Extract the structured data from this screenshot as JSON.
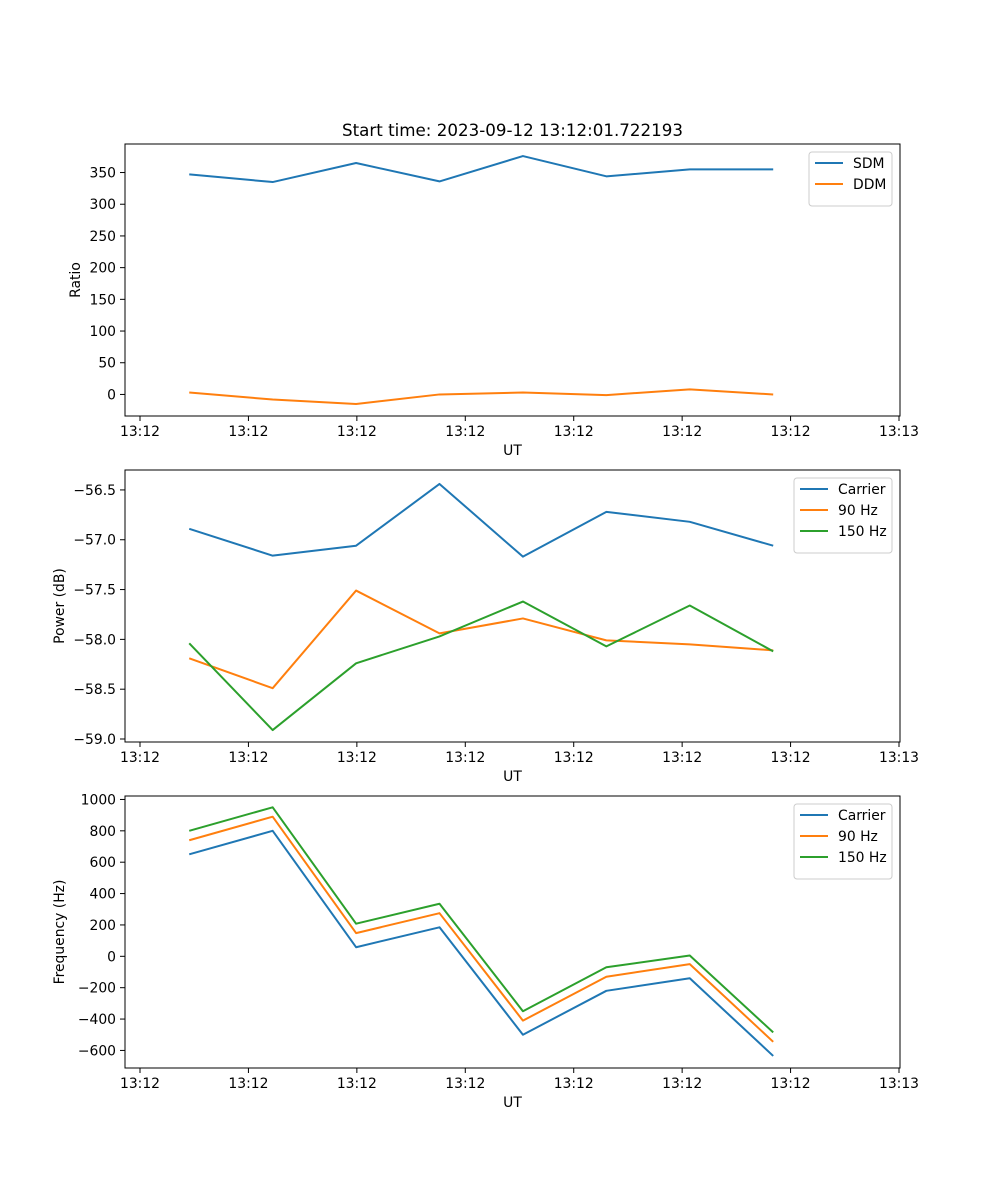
{
  "figure_title": "Start time: 2023-09-12 13:12:01.722193",
  "colors": {
    "blue": "#1f77b4",
    "orange": "#ff7f0e",
    "green": "#2ca02c"
  },
  "chart_data": [
    {
      "type": "line",
      "title": "Start time: 2023-09-12 13:12:01.722193",
      "xlabel": "UT",
      "ylabel": "Ratio",
      "x_tick_labels": [
        "13:12",
        "13:12",
        "13:12",
        "13:12",
        "13:12",
        "13:12",
        "13:12",
        "13:13"
      ],
      "x_points": 8,
      "x_range_index": [
        -0.77,
        8.52
      ],
      "ylim": [
        -34,
        395
      ],
      "y_ticks": [
        0,
        50,
        100,
        150,
        200,
        250,
        300,
        350
      ],
      "y_tick_labels": [
        "0",
        "50",
        "100",
        "150",
        "200",
        "250",
        "300",
        "350"
      ],
      "legend_position": "upper right",
      "series": [
        {
          "name": "SDM",
          "color": "#1f77b4",
          "values": [
            347,
            335,
            365,
            336,
            376,
            344,
            355,
            355
          ]
        },
        {
          "name": "DDM",
          "color": "#ff7f0e",
          "values": [
            3,
            -8,
            -15,
            0,
            3,
            -1,
            8,
            0
          ]
        }
      ]
    },
    {
      "type": "line",
      "title": "",
      "xlabel": "UT",
      "ylabel": "Power (dB)",
      "x_tick_labels": [
        "13:12",
        "13:12",
        "13:12",
        "13:12",
        "13:12",
        "13:12",
        "13:12",
        "13:13"
      ],
      "x_points": 8,
      "x_range_index": [
        -0.77,
        8.52
      ],
      "ylim": [
        -59.03,
        -56.3
      ],
      "y_ticks": [
        -59.0,
        -58.5,
        -58.0,
        -57.5,
        -57.0,
        -56.5
      ],
      "y_tick_labels": [
        "−59.0",
        "−58.5",
        "−58.0",
        "−57.5",
        "−57.0",
        "−56.5"
      ],
      "legend_position": "upper right",
      "series": [
        {
          "name": "Carrier",
          "color": "#1f77b4",
          "values": [
            -56.89,
            -57.16,
            -57.06,
            -56.44,
            -57.17,
            -56.72,
            -56.82,
            -57.06
          ]
        },
        {
          "name": "90 Hz",
          "color": "#ff7f0e",
          "values": [
            -58.19,
            -58.49,
            -57.51,
            -57.94,
            -57.79,
            -58.01,
            -58.05,
            -58.11
          ]
        },
        {
          "name": "150 Hz",
          "color": "#2ca02c",
          "values": [
            -58.04,
            -58.91,
            -58.24,
            -57.97,
            -57.62,
            -58.07,
            -57.66,
            -58.12
          ]
        }
      ]
    },
    {
      "type": "line",
      "title": "",
      "xlabel": "UT",
      "ylabel": "Frequency (Hz)",
      "x_tick_labels": [
        "13:12",
        "13:12",
        "13:12",
        "13:12",
        "13:12",
        "13:12",
        "13:12",
        "13:13"
      ],
      "x_points": 8,
      "x_range_index": [
        -0.77,
        8.52
      ],
      "ylim": [
        -712,
        1022
      ],
      "y_ticks": [
        -600,
        -400,
        -200,
        0,
        200,
        400,
        600,
        800,
        1000
      ],
      "y_tick_labels": [
        "−600",
        "−400",
        "−200",
        "0",
        "200",
        "400",
        "600",
        "800",
        "1000"
      ],
      "legend_position": "upper right",
      "series": [
        {
          "name": "Carrier",
          "color": "#1f77b4",
          "values": [
            650,
            800,
            58,
            185,
            -500,
            -220,
            -140,
            -635
          ]
        },
        {
          "name": "90 Hz",
          "color": "#ff7f0e",
          "values": [
            740,
            890,
            148,
            275,
            -410,
            -130,
            -50,
            -545
          ]
        },
        {
          "name": "150 Hz",
          "color": "#2ca02c",
          "values": [
            800,
            950,
            208,
            335,
            -350,
            -70,
            5,
            -485
          ]
        }
      ]
    }
  ]
}
